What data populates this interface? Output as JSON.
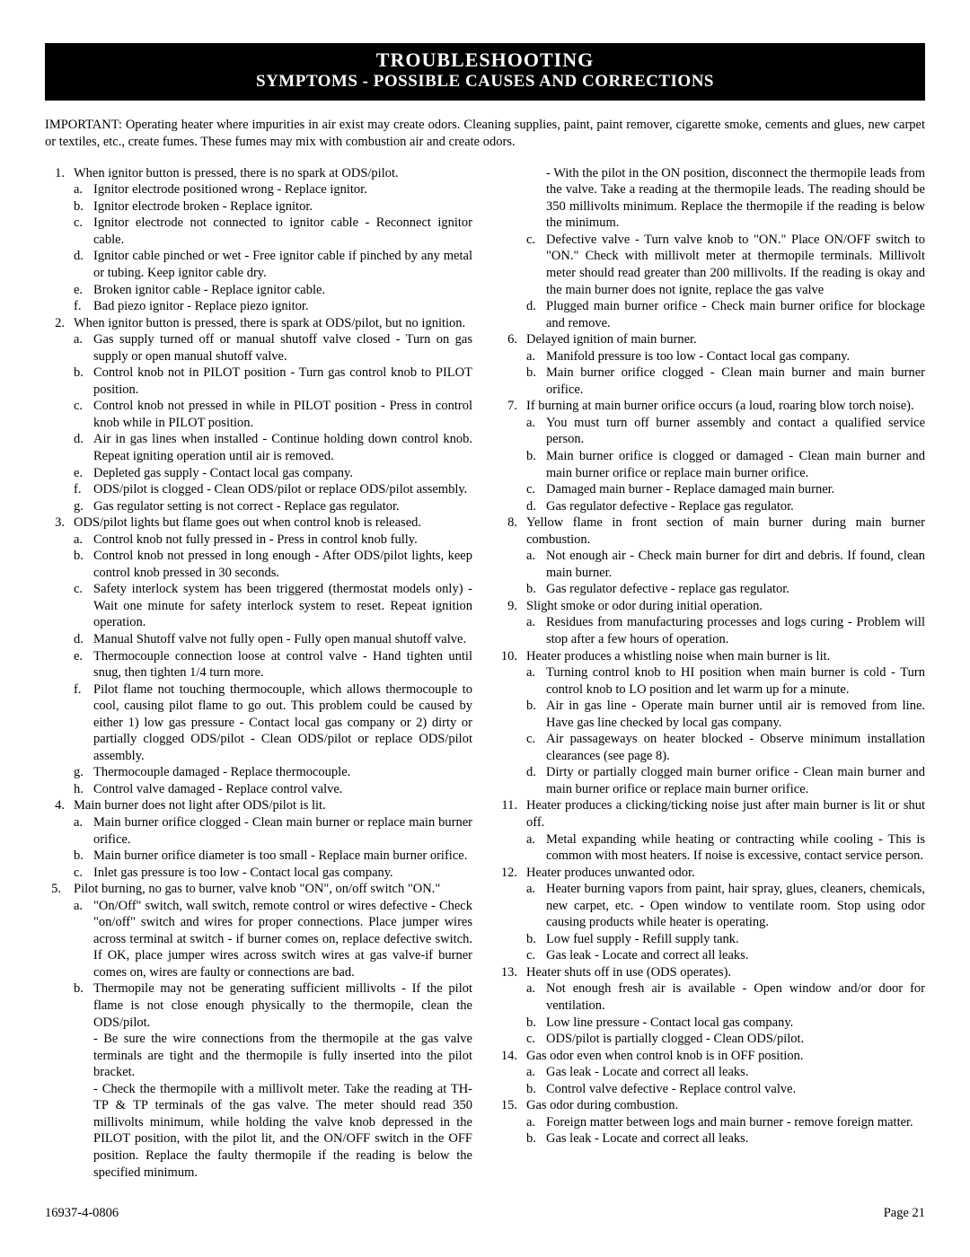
{
  "header": {
    "title": "TROUBLESHOOTING",
    "subtitle": "SYMPTOMS - POSSIBLE CAUSES AND CORRECTIONS"
  },
  "important": "IMPORTANT:  Operating heater where impurities in air exist may create odors.  Cleaning supplies, paint, paint remover, cigarette smoke, cements and glues, new carpet or textiles, etc., create fumes.  These fumes may mix with combustion air and create odors.",
  "i1": "When ignitor button is pressed, there is no spark at ODS/pilot.",
  "i1a": "Ignitor electrode positioned wrong - Replace ignitor.",
  "i1b": "Ignitor electrode broken - Replace ignitor.",
  "i1c": "Ignitor electrode not connected to ignitor cable - Reconnect ignitor cable.",
  "i1d": "Ignitor cable pinched or wet - Free ignitor cable if pinched by any metal or tubing. Keep ignitor cable dry.",
  "i1e": "Broken ignitor cable - Replace ignitor cable.",
  "i1f": "Bad piezo ignitor - Replace piezo ignitor.",
  "i2": "When ignitor button is pressed, there is spark at ODS/pilot, but no ignition.",
  "i2a": "Gas supply turned off or manual shutoff valve closed - Turn on gas supply or open manual shutoff valve.",
  "i2b": "Control knob not in PILOT position - Turn gas control knob to PILOT position.",
  "i2c": "Control knob not pressed in while in PILOT position - Press in control knob while in PILOT position.",
  "i2d": "Air in gas lines when installed - Continue holding down control knob. Repeat igniting operation until air is removed.",
  "i2e": "Depleted gas supply - Contact local gas company.",
  "i2f": "ODS/pilot is clogged - Clean ODS/pilot or replace ODS/pilot assembly.",
  "i2g": "Gas regulator setting is not correct - Replace gas regulator.",
  "i3": "ODS/pilot lights but flame goes out when control knob is released.",
  "i3a": "Control knob not fully pressed in - Press in control knob fully.",
  "i3b": "Control knob not pressed in long enough - After ODS/pilot lights, keep control knob pressed in 30 seconds.",
  "i3c": "Safety interlock system has been triggered (thermostat models only) - Wait one minute for safety interlock system to reset. Repeat ignition operation.",
  "i3d": "Manual Shutoff valve not fully open - Fully open manual shutoff valve.",
  "i3e": "Thermocouple connection loose at control valve - Hand tighten until snug, then tighten 1/4 turn more.",
  "i3f": "Pilot flame not touching thermocouple, which allows thermocouple to cool, causing pilot flame to go out. This problem could be caused by either 1) low gas pressure - Contact local gas company or 2) dirty or partially clogged ODS/pilot - Clean ODS/pilot or replace ODS/pilot assembly.",
  "i3g": "Thermocouple damaged - Replace thermocouple.",
  "i3h": "Control valve damaged - Replace control valve.",
  "i4": "Main burner does not light after ODS/pilot is lit.",
  "i4a": "Main burner orifice clogged - Clean main burner or replace main burner orifice.",
  "i4b": "Main burner orifice diameter is too small - Replace main burner orifice.",
  "i4c": "Inlet gas pressure is too low - Contact local gas company.",
  "i5": "Pilot burning, no gas to burner, valve knob \"ON\", on/off switch \"ON.\"",
  "i5a": "\"On/Off\" switch, wall switch, remote control or wires defective - Check \"on/off\" switch and wires for proper connections. Place jumper wires across terminal at switch - if burner comes on, replace defective switch. If OK, place jumper wires across switch wires at gas valve-if burner comes on, wires are faulty or connections are bad.",
  "i5b": "Thermopile may not be generating sufficient millivolts - If the pilot flame is not close enough physically to the thermopile, clean the ODS/pilot.",
  "i5b2": "- Be sure the wire connections from the thermopile at the gas valve terminals are tight and the thermopile is fully inserted into the pilot bracket.",
  "i5b3": "- Check the thermopile with a millivolt meter. Take the reading at TH-TP & TP terminals of the gas valve. The meter should read 350 millivolts minimum, while holding the valve knob depressed in the PILOT position, with the pilot lit, and the ON/OFF switch in the OFF position. Replace the faulty thermopile if the reading is below the specified minimum.",
  "i5b4": "- With the pilot in the ON position, disconnect the thermopile leads from the valve. Take a reading at the thermopile leads. The reading should be 350 millivolts minimum. Replace the thermopile if the reading is below the minimum.",
  "i5c": "Defective valve - Turn valve knob to \"ON.\" Place ON/OFF switch to \"ON.\" Check with millivolt meter at thermopile terminals. Millivolt meter should read greater than 200 millivolts. If the reading is okay and the main burner does not ignite, replace the gas valve",
  "i5d": "Plugged main burner orifice - Check main burner orifice for blockage and remove.",
  "i6": "Delayed ignition of main burner.",
  "i6a": "Manifold pressure is too low - Contact local gas company.",
  "i6b": "Main burner orifice clogged - Clean main burner and main burner orifice.",
  "i7": "If burning at main burner orifice occurs (a loud, roaring blow torch noise).",
  "i7a": "You must turn off burner assembly and contact a qualified service person.",
  "i7b": "Main burner orifice is clogged or damaged - Clean main burner and main burner orifice or replace main burner orifice.",
  "i7c": "Damaged main burner - Replace damaged main burner.",
  "i7d": "Gas regulator defective - Replace gas regulator.",
  "i8": "Yellow flame in front section of main burner during main burner combustion.",
  "i8a": "Not enough air - Check main burner for dirt and debris. If found, clean main burner.",
  "i8b": "Gas regulator defective - replace gas regulator.",
  "i9": "Slight smoke or odor during initial operation.",
  "i9a": "Residues from manufacturing processes and logs curing - Problem will stop after a few hours of operation.",
  "i10": "Heater produces a whistling noise when main burner is lit.",
  "i10a": "Turning control knob to HI position when main burner is cold - Turn control knob to LO position and let warm up for a minute.",
  "i10b": "Air in gas line - Operate main burner until air is removed from line. Have gas line checked by local gas company.",
  "i10c": "Air passageways on heater blocked - Observe minimum installation clearances (see page 8).",
  "i10d": "Dirty or partially clogged main burner orifice - Clean main burner and main burner orifice or replace main burner orifice.",
  "i11": "Heater produces a clicking/ticking noise just after main burner is lit or shut off.",
  "i11a": "Metal expanding while heating or contracting while cooling - This is common with most heaters. If noise is excessive, contact service person.",
  "i12": "Heater produces unwanted odor.",
  "i12a": "Heater burning vapors from paint, hair spray, glues, cleaners, chemicals, new carpet, etc. - Open window to ventilate room. Stop using odor causing products while heater is operating.",
  "i12b": "Low fuel supply - Refill supply tank.",
  "i12c": "Gas leak - Locate and correct all leaks.",
  "i13": "Heater shuts off in use (ODS operates).",
  "i13a": "Not enough fresh air is available - Open window and/or door for ventilation.",
  "i13b": "Low line pressure - Contact local gas company.",
  "i13c": "ODS/pilot is partially clogged - Clean ODS/pilot.",
  "i14": "Gas odor even when control knob is in OFF position.",
  "i14a": "Gas leak - Locate and correct all leaks.",
  "i14b": "Control valve defective - Replace control valve.",
  "i15": "Gas odor during combustion.",
  "i15a": "Foreign matter between logs and main burner - remove foreign matter.",
  "i15b": "Gas leak - Locate and correct all leaks.",
  "footer": {
    "left": "16937-4-0806",
    "right": "Page 21"
  }
}
